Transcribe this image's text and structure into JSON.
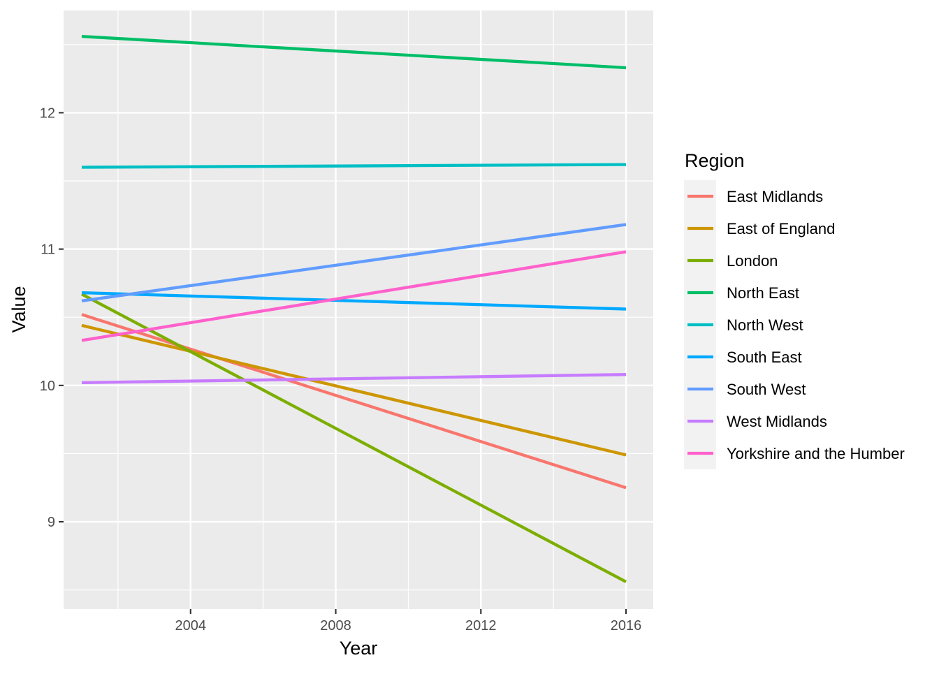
{
  "chart_data": {
    "type": "line",
    "title": "",
    "xlabel": "Year",
    "ylabel": "Value",
    "xlim": [
      2000.5,
      2016.75
    ],
    "ylim": [
      8.36,
      12.75
    ],
    "x_ticks": [
      2004,
      2008,
      2012,
      2016
    ],
    "x_minor_ticks": [
      2002,
      2006,
      2010,
      2014
    ],
    "y_ticks": [
      9,
      10,
      11,
      12
    ],
    "y_minor_ticks": [
      8.5,
      9.5,
      10.5,
      11.5,
      12.5
    ],
    "grid": true,
    "legend": {
      "title": "Region",
      "position": "right"
    },
    "series": [
      {
        "name": "East Midlands",
        "color": "#F8766D",
        "x": [
          2001,
          2016
        ],
        "y": [
          10.52,
          9.25
        ]
      },
      {
        "name": "East of England",
        "color": "#CD9600",
        "x": [
          2001,
          2016
        ],
        "y": [
          10.44,
          9.49
        ]
      },
      {
        "name": "London",
        "color": "#7CAE00",
        "x": [
          2001,
          2016
        ],
        "y": [
          10.67,
          8.56
        ]
      },
      {
        "name": "North East",
        "color": "#00BE67",
        "x": [
          2001,
          2016
        ],
        "y": [
          12.56,
          12.33
        ]
      },
      {
        "name": "North West",
        "color": "#00BFC4",
        "x": [
          2001,
          2016
        ],
        "y": [
          11.6,
          11.62
        ]
      },
      {
        "name": "South East",
        "color": "#00A9FF",
        "x": [
          2001,
          2016
        ],
        "y": [
          10.68,
          10.56
        ]
      },
      {
        "name": "South West",
        "color": "#619CFF",
        "x": [
          2001,
          2016
        ],
        "y": [
          10.62,
          11.18
        ]
      },
      {
        "name": "West Midlands",
        "color": "#C77CFF",
        "x": [
          2001,
          2016
        ],
        "y": [
          10.02,
          10.08
        ]
      },
      {
        "name": "Yorkshire and the Humber",
        "color": "#FF61CC",
        "x": [
          2001,
          2016
        ],
        "y": [
          10.33,
          10.98
        ]
      }
    ]
  }
}
